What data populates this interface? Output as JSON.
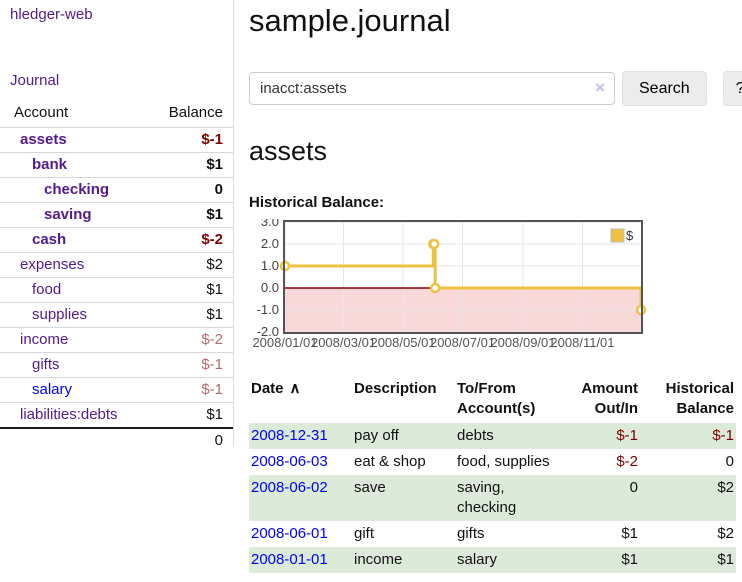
{
  "sidebar": {
    "app_title": "hledger-web",
    "journal_link": "Journal",
    "accounts_table": {
      "headers": [
        "Account",
        "Balance"
      ],
      "rows": [
        {
          "name": "assets",
          "indent": 1,
          "bold": true,
          "link_color": "purple",
          "balance": "$-1",
          "balance_class": "neg-strong"
        },
        {
          "name": "bank",
          "indent": 2,
          "bold": true,
          "link_color": "purple",
          "balance": "$1",
          "balance_class": ""
        },
        {
          "name": "checking",
          "indent": 3,
          "bold": true,
          "link_color": "purple",
          "balance": "0",
          "balance_class": ""
        },
        {
          "name": "saving",
          "indent": 3,
          "bold": true,
          "link_color": "purple",
          "balance": "$1",
          "balance_class": ""
        },
        {
          "name": "cash",
          "indent": 2,
          "bold": true,
          "link_color": "purple",
          "balance": "$-2",
          "balance_class": "neg-strong"
        },
        {
          "name": "expenses",
          "indent": 1,
          "bold": false,
          "link_color": "purple",
          "balance": "$2",
          "balance_class": ""
        },
        {
          "name": "food",
          "indent": 2,
          "bold": false,
          "link_color": "purple",
          "balance": "$1",
          "balance_class": ""
        },
        {
          "name": "supplies",
          "indent": 2,
          "bold": false,
          "link_color": "purple",
          "balance": "$1",
          "balance_class": ""
        },
        {
          "name": "income",
          "indent": 1,
          "bold": false,
          "link_color": "purple",
          "balance": "$-2",
          "balance_class": "neg-soft"
        },
        {
          "name": "gifts",
          "indent": 2,
          "bold": false,
          "link_color": "purple",
          "balance": "$-1",
          "balance_class": "neg-soft"
        },
        {
          "name": "salary",
          "indent": 2,
          "bold": false,
          "link_color": "blue",
          "balance": "$-1",
          "balance_class": "neg-soft"
        },
        {
          "name": "liabilities:debts",
          "indent": 1,
          "bold": false,
          "link_color": "purple",
          "balance": "$1",
          "balance_class": ""
        }
      ],
      "total": "0"
    }
  },
  "main": {
    "title": "sample.journal",
    "search": {
      "value": "inacct:assets",
      "clear_icon": "×",
      "search_button": "Search",
      "help_button": "?"
    },
    "account_heading": "assets",
    "chart_label": "Historical Balance:"
  },
  "chart_data": {
    "type": "line",
    "style": "step",
    "title": "Historical Balance",
    "legend": {
      "label": "$",
      "position": "top-right",
      "swatch_color": "#edc240"
    },
    "x_start": "2008-01-01",
    "x_end": "2008-12-31",
    "x_tick_labels": [
      "2008/01/01",
      "2008/03/01",
      "2008/05/01",
      "2008/07/01",
      "2008/09/01",
      "2008/11/01"
    ],
    "y_ticks": [
      "3.0",
      "2.0",
      "1.0",
      "0.0",
      "-1.0",
      "-2.0"
    ],
    "ylim": [
      -2,
      3
    ],
    "grid": true,
    "negative_fill": "#f9d8da",
    "zero_line_color": "#8b0000",
    "series": [
      {
        "name": "$",
        "color": "#edc240",
        "points": [
          {
            "date": "2008-01-01",
            "value": 1
          },
          {
            "date": "2008-06-01",
            "value": 2
          },
          {
            "date": "2008-06-02",
            "value": 2
          },
          {
            "date": "2008-06-03",
            "value": 0
          },
          {
            "date": "2008-12-31",
            "value": -1
          }
        ]
      }
    ]
  },
  "register_table": {
    "date_header": "Date",
    "sort_indicator": "∧",
    "headers": [
      "Date",
      "Description",
      "To/From Account(s)",
      "Amount Out/In",
      "Historical Balance"
    ],
    "rows": [
      {
        "date": "2008-12-31",
        "description": "pay off",
        "accounts": "debts",
        "amount": "$-1",
        "amount_class": "neg-strong",
        "balance": "$-1",
        "balance_class": "neg-strong",
        "shaded": true
      },
      {
        "date": "2008-06-03",
        "description": "eat & shop",
        "accounts": "food, supplies",
        "amount": "$-2",
        "amount_class": "neg-strong",
        "balance": "0",
        "balance_class": "",
        "shaded": false
      },
      {
        "date": "2008-06-02",
        "description": "save",
        "accounts": "saving, checking",
        "amount": "0",
        "amount_class": "",
        "balance": "$2",
        "balance_class": "",
        "shaded": true
      },
      {
        "date": "2008-06-01",
        "description": "gift",
        "accounts": "gifts",
        "amount": "$1",
        "amount_class": "",
        "balance": "$2",
        "balance_class": "",
        "shaded": false
      },
      {
        "date": "2008-01-01",
        "description": "income",
        "accounts": "salary",
        "amount": "$1",
        "amount_class": "",
        "balance": "$1",
        "balance_class": "",
        "shaded": true
      }
    ]
  },
  "colors": {
    "link_purple": "#551a8b",
    "link_blue": "#0000ee",
    "negative_strong": "#800000",
    "negative_soft": "#b36a6a",
    "row_highlight_green": "#dcead9",
    "chart_line_yellow": "#edc240",
    "chart_negative_fill": "#f9d8da",
    "chart_zero_line": "#8b0000",
    "chart_border": "#545454"
  }
}
